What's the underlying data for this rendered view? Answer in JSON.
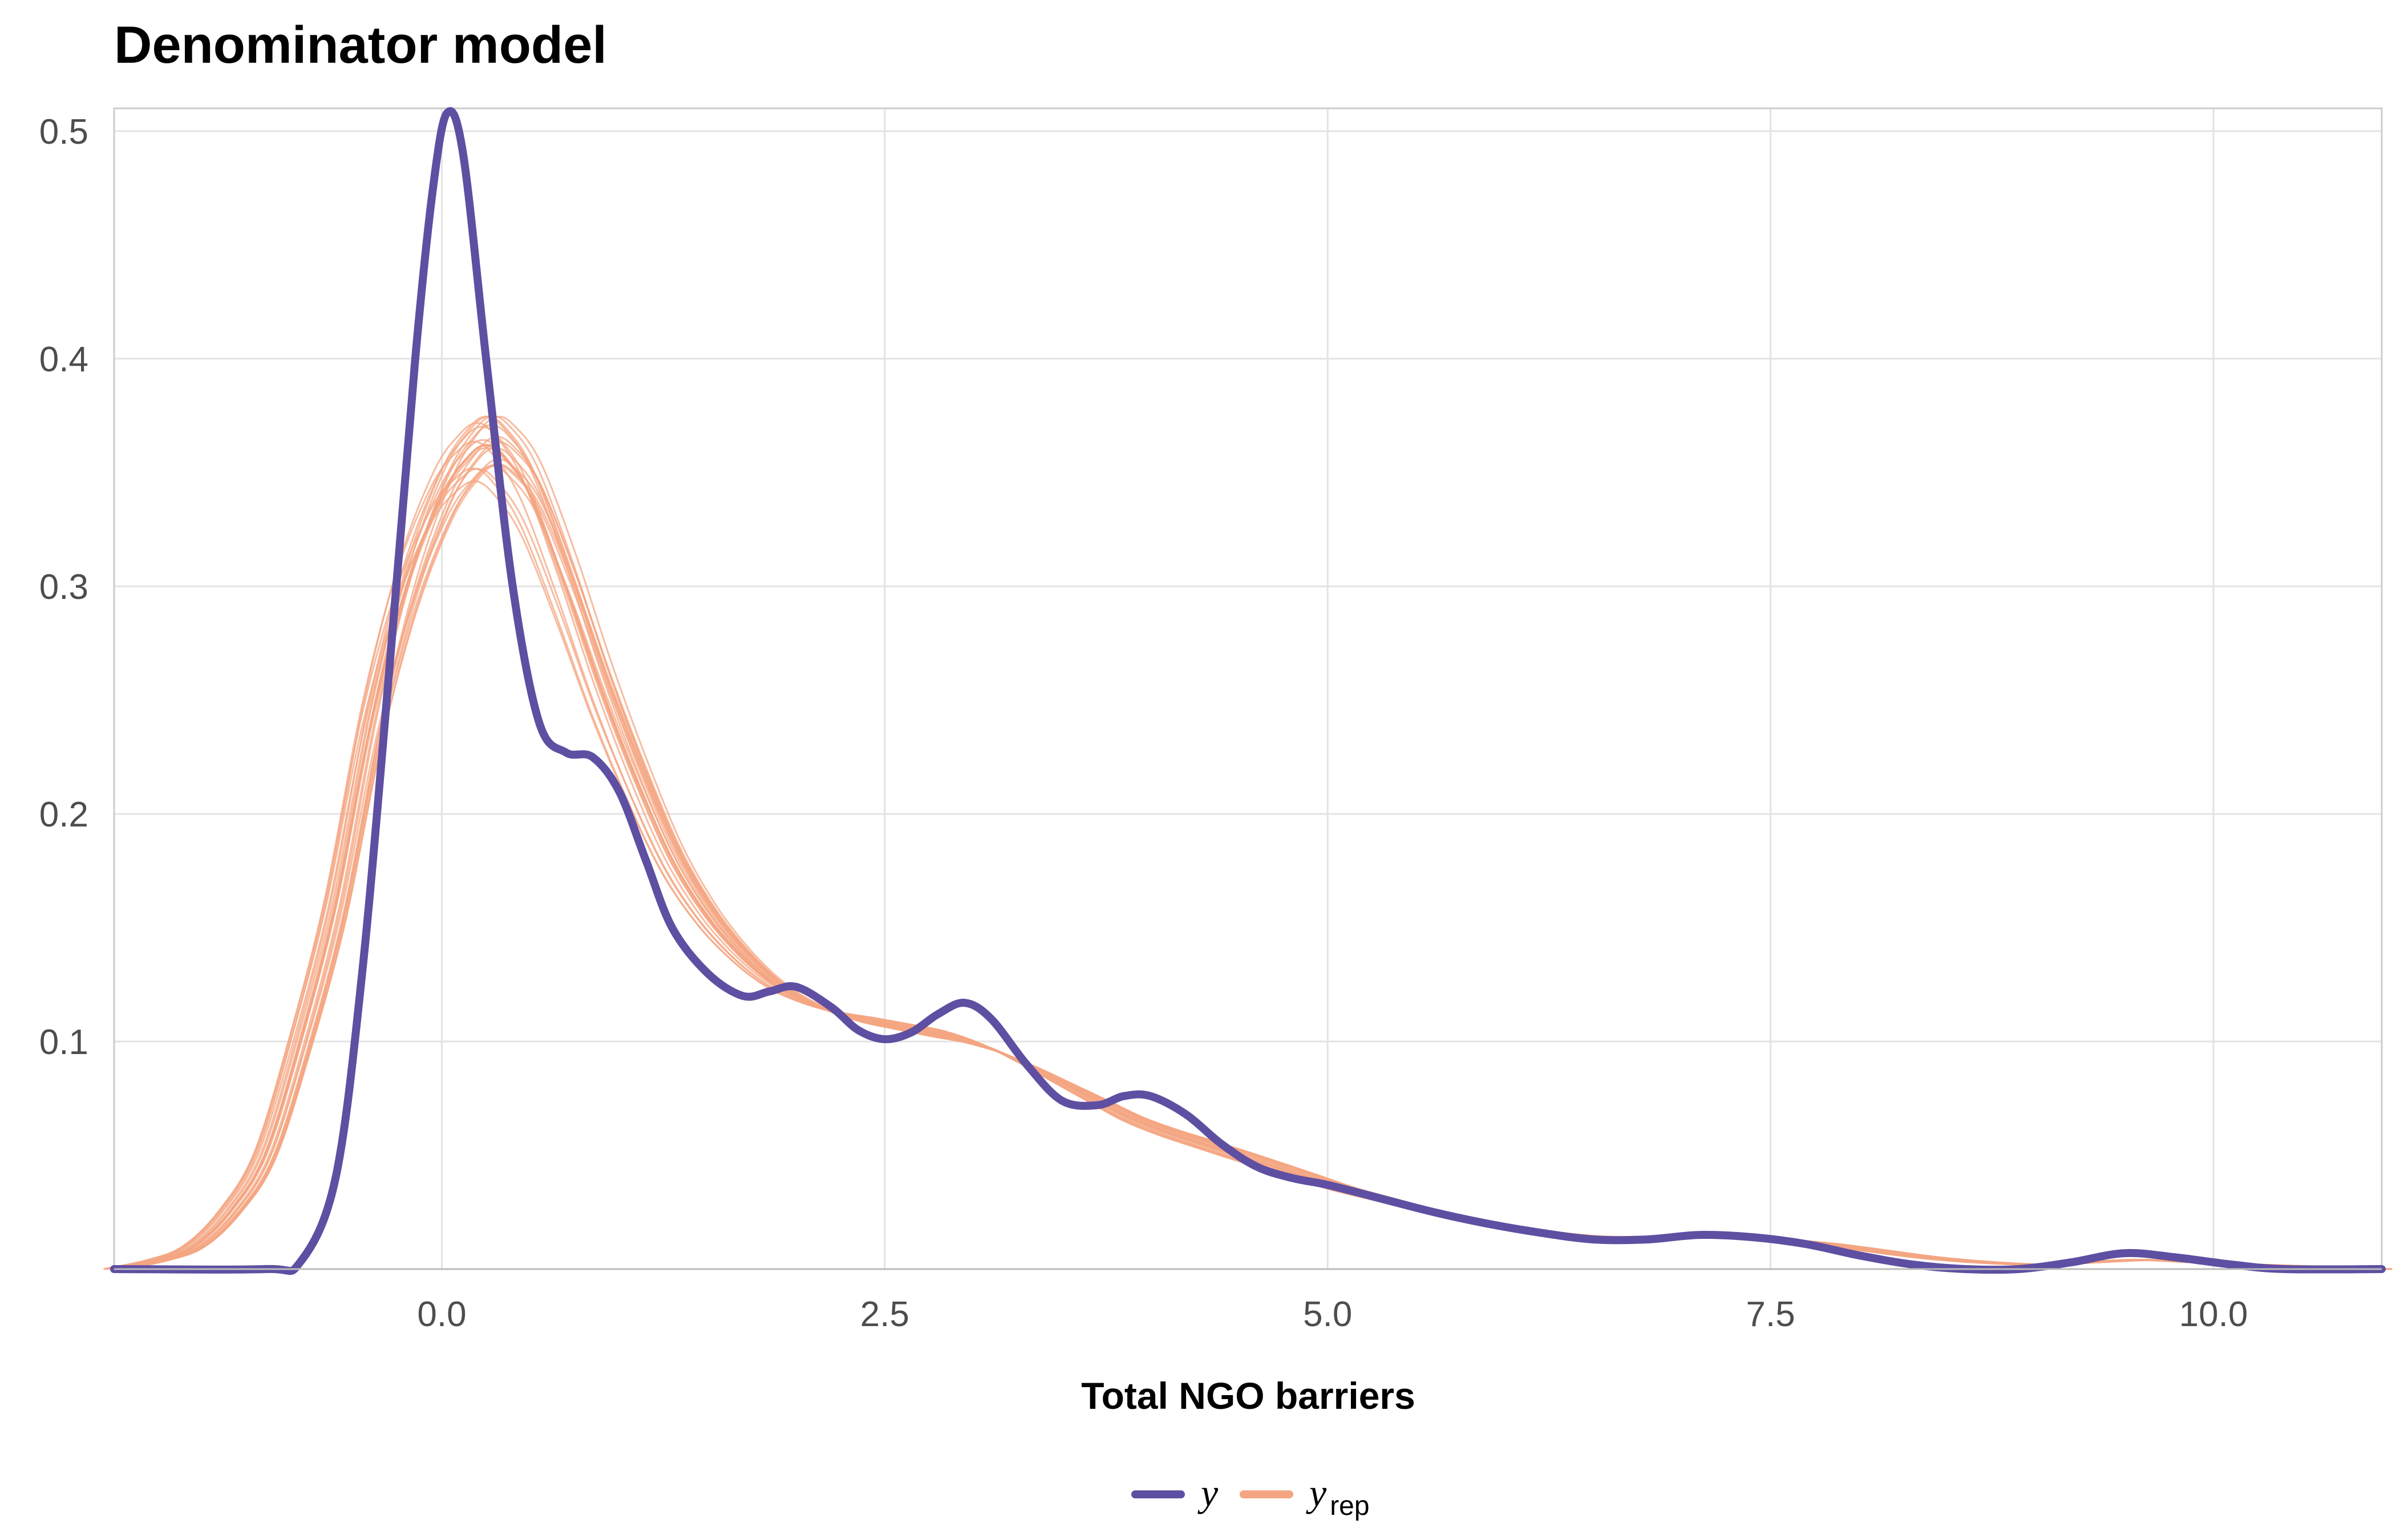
{
  "chart_data": {
    "type": "line",
    "title": "Denominator model",
    "xlabel": "Total NGO barriers",
    "ylabel": "",
    "xlim": [
      -1.85,
      10.95
    ],
    "ylim": [
      0,
      0.51
    ],
    "x_ticks": [
      0.0,
      2.5,
      5.0,
      7.5,
      10.0
    ],
    "x_tick_labels": [
      "0.0",
      "2.5",
      "5.0",
      "7.5",
      "10.0"
    ],
    "y_ticks": [
      0.1,
      0.2,
      0.3,
      0.4,
      0.5
    ],
    "y_tick_labels": [
      "0.1",
      "0.2",
      "0.3",
      "0.4",
      "0.5"
    ],
    "grid": true,
    "legend": {
      "position": "bottom",
      "items": [
        {
          "label": "y",
          "subscript": "",
          "color": "#5e4fa2"
        },
        {
          "label": "y",
          "subscript": "rep",
          "color": "#f4a582"
        }
      ]
    },
    "series": [
      {
        "name": "y",
        "color": "#5e4fa2",
        "points": [
          [
            -1.85,
            0.0
          ],
          [
            -1.0,
            0.0
          ],
          [
            -0.8,
            0.003
          ],
          [
            -0.6,
            0.04
          ],
          [
            -0.45,
            0.13
          ],
          [
            -0.3,
            0.26
          ],
          [
            -0.15,
            0.4
          ],
          [
            -0.05,
            0.475
          ],
          [
            0.03,
            0.508
          ],
          [
            0.12,
            0.49
          ],
          [
            0.25,
            0.4
          ],
          [
            0.4,
            0.3
          ],
          [
            0.55,
            0.24
          ],
          [
            0.7,
            0.227
          ],
          [
            0.85,
            0.225
          ],
          [
            1.0,
            0.21
          ],
          [
            1.15,
            0.18
          ],
          [
            1.3,
            0.15
          ],
          [
            1.5,
            0.13
          ],
          [
            1.7,
            0.12
          ],
          [
            1.85,
            0.122
          ],
          [
            2.0,
            0.124
          ],
          [
            2.2,
            0.115
          ],
          [
            2.35,
            0.105
          ],
          [
            2.5,
            0.101
          ],
          [
            2.65,
            0.104
          ],
          [
            2.8,
            0.112
          ],
          [
            2.95,
            0.117
          ],
          [
            3.1,
            0.11
          ],
          [
            3.3,
            0.09
          ],
          [
            3.5,
            0.074
          ],
          [
            3.7,
            0.072
          ],
          [
            3.85,
            0.076
          ],
          [
            4.0,
            0.076
          ],
          [
            4.2,
            0.068
          ],
          [
            4.4,
            0.055
          ],
          [
            4.6,
            0.045
          ],
          [
            4.8,
            0.04
          ],
          [
            5.0,
            0.037
          ],
          [
            5.3,
            0.031
          ],
          [
            5.6,
            0.025
          ],
          [
            5.9,
            0.02
          ],
          [
            6.2,
            0.016
          ],
          [
            6.5,
            0.013
          ],
          [
            6.8,
            0.013
          ],
          [
            7.1,
            0.015
          ],
          [
            7.4,
            0.014
          ],
          [
            7.7,
            0.011
          ],
          [
            8.0,
            0.006
          ],
          [
            8.3,
            0.002
          ],
          [
            8.6,
            0.0
          ],
          [
            8.9,
            0.0
          ],
          [
            9.2,
            0.003
          ],
          [
            9.5,
            0.007
          ],
          [
            9.8,
            0.005
          ],
          [
            10.1,
            0.002
          ],
          [
            10.4,
            0.0
          ],
          [
            10.95,
            0.0
          ]
        ]
      },
      {
        "name": "y_rep",
        "color": "#f4a582",
        "points": [
          [
            -1.85,
            0.0
          ],
          [
            -1.6,
            0.004
          ],
          [
            -1.4,
            0.01
          ],
          [
            -1.2,
            0.025
          ],
          [
            -1.0,
            0.05
          ],
          [
            -0.8,
            0.1
          ],
          [
            -0.6,
            0.16
          ],
          [
            -0.4,
            0.24
          ],
          [
            -0.2,
            0.3
          ],
          [
            0.0,
            0.34
          ],
          [
            0.15,
            0.357
          ],
          [
            0.25,
            0.362
          ],
          [
            0.35,
            0.357
          ],
          [
            0.5,
            0.34
          ],
          [
            0.7,
            0.3
          ],
          [
            0.9,
            0.255
          ],
          [
            1.1,
            0.215
          ],
          [
            1.3,
            0.18
          ],
          [
            1.5,
            0.155
          ],
          [
            1.7,
            0.137
          ],
          [
            1.9,
            0.124
          ],
          [
            2.1,
            0.116
          ],
          [
            2.3,
            0.111
          ],
          [
            2.5,
            0.108
          ],
          [
            2.7,
            0.105
          ],
          [
            2.9,
            0.102
          ],
          [
            3.1,
            0.097
          ],
          [
            3.3,
            0.09
          ],
          [
            3.5,
            0.082
          ],
          [
            3.7,
            0.074
          ],
          [
            3.9,
            0.066
          ],
          [
            4.1,
            0.06
          ],
          [
            4.3,
            0.055
          ],
          [
            4.5,
            0.05
          ],
          [
            4.7,
            0.045
          ],
          [
            4.9,
            0.04
          ],
          [
            5.1,
            0.035
          ],
          [
            5.4,
            0.029
          ],
          [
            5.7,
            0.023
          ],
          [
            6.0,
            0.019
          ],
          [
            6.3,
            0.016
          ],
          [
            6.6,
            0.014
          ],
          [
            6.9,
            0.014
          ],
          [
            7.2,
            0.014
          ],
          [
            7.5,
            0.013
          ],
          [
            7.8,
            0.011
          ],
          [
            8.1,
            0.008
          ],
          [
            8.4,
            0.005
          ],
          [
            8.7,
            0.003
          ],
          [
            9.0,
            0.002
          ],
          [
            9.3,
            0.003
          ],
          [
            9.6,
            0.004
          ],
          [
            9.9,
            0.003
          ],
          [
            10.2,
            0.002
          ],
          [
            10.6,
            0.001
          ],
          [
            10.95,
            0.0
          ]
        ]
      }
    ]
  }
}
